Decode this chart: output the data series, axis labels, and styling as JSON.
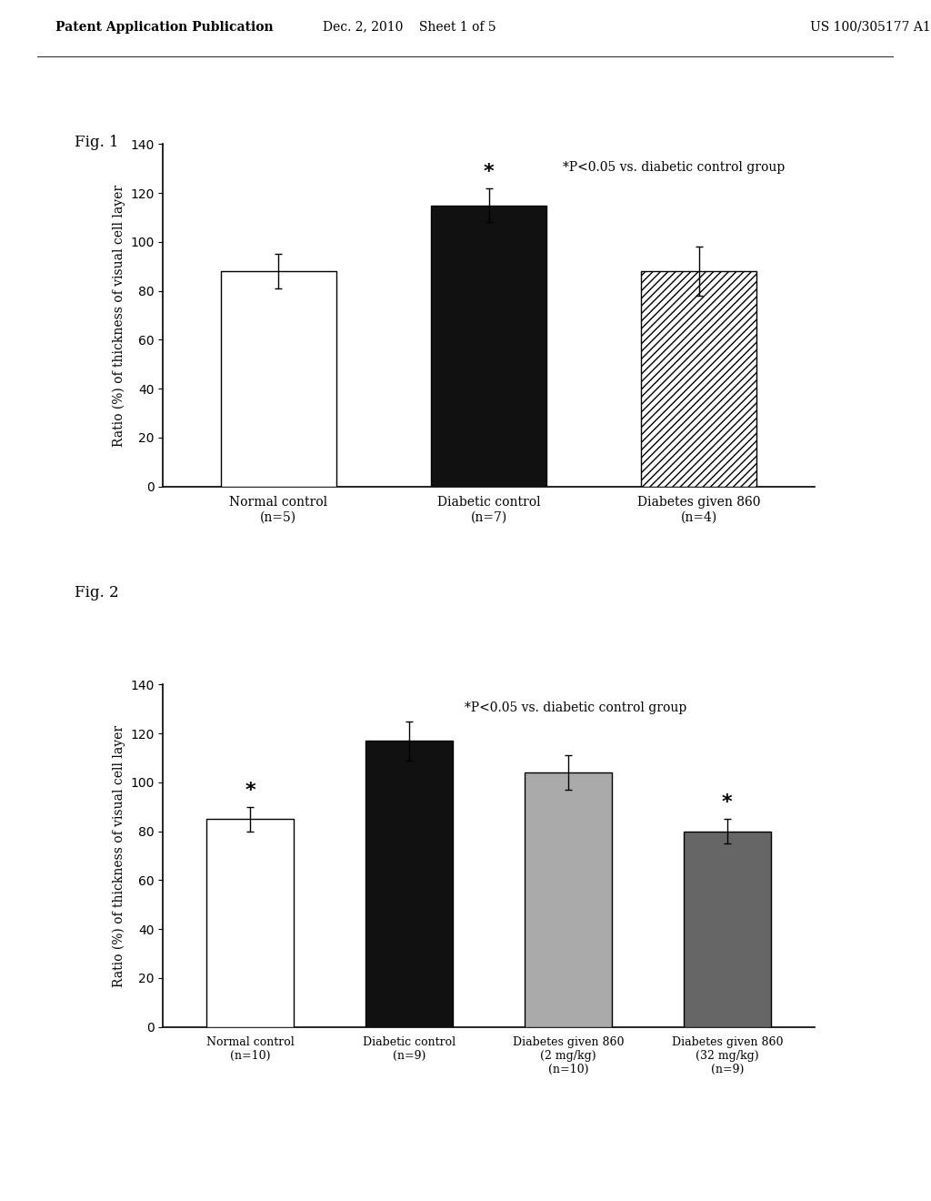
{
  "fig1": {
    "categories": [
      "Normal control\n(n=5)",
      "Diabetic control\n(n=7)",
      "Diabetes given 860\n(n=4)"
    ],
    "values": [
      88,
      115,
      88
    ],
    "errors": [
      7,
      7,
      10
    ],
    "bar_hatches": [
      null,
      null,
      "////"
    ],
    "bar_edgecolors": [
      "black",
      "black",
      "black"
    ],
    "bar_facecolors": [
      "white",
      "#111111",
      "white"
    ],
    "asterisk_idx": [
      1
    ],
    "ylabel": "Ratio (%) of thickness of visual cell layer",
    "ylim": [
      0,
      140
    ],
    "yticks": [
      0,
      20,
      40,
      60,
      80,
      100,
      120,
      140
    ],
    "annotation": "*P<0.05 vs. diabetic control group",
    "fig_label": "Fig. 1"
  },
  "fig2": {
    "categories": [
      "Normal control\n(n=10)",
      "Diabetic control\n(n=9)",
      "Diabetes given 860\n(2 mg/kg)\n(n=10)",
      "Diabetes given 860\n(32 mg/kg)\n(n=9)"
    ],
    "values": [
      85,
      117,
      104,
      80
    ],
    "errors": [
      5,
      8,
      7,
      5
    ],
    "bar_hatches": [
      null,
      null,
      null,
      null
    ],
    "bar_edgecolors": [
      "black",
      "black",
      "black",
      "black"
    ],
    "bar_facecolors": [
      "white",
      "#111111",
      "#aaaaaa",
      "#666666"
    ],
    "asterisk_idx": [
      0,
      3
    ],
    "ylabel": "Ratio (%) of thickness of visual cell layer",
    "ylim": [
      0,
      140
    ],
    "yticks": [
      0,
      20,
      40,
      60,
      80,
      100,
      120,
      140
    ],
    "annotation": "*P<0.05 vs. diabetic control group",
    "fig_label": "Fig. 2"
  },
  "background_color": "#ffffff",
  "header_left": "Patent Application Publication",
  "header_mid": "Dec. 2, 2010    Sheet 1 of 5",
  "header_right": "US 100/305177 A1"
}
